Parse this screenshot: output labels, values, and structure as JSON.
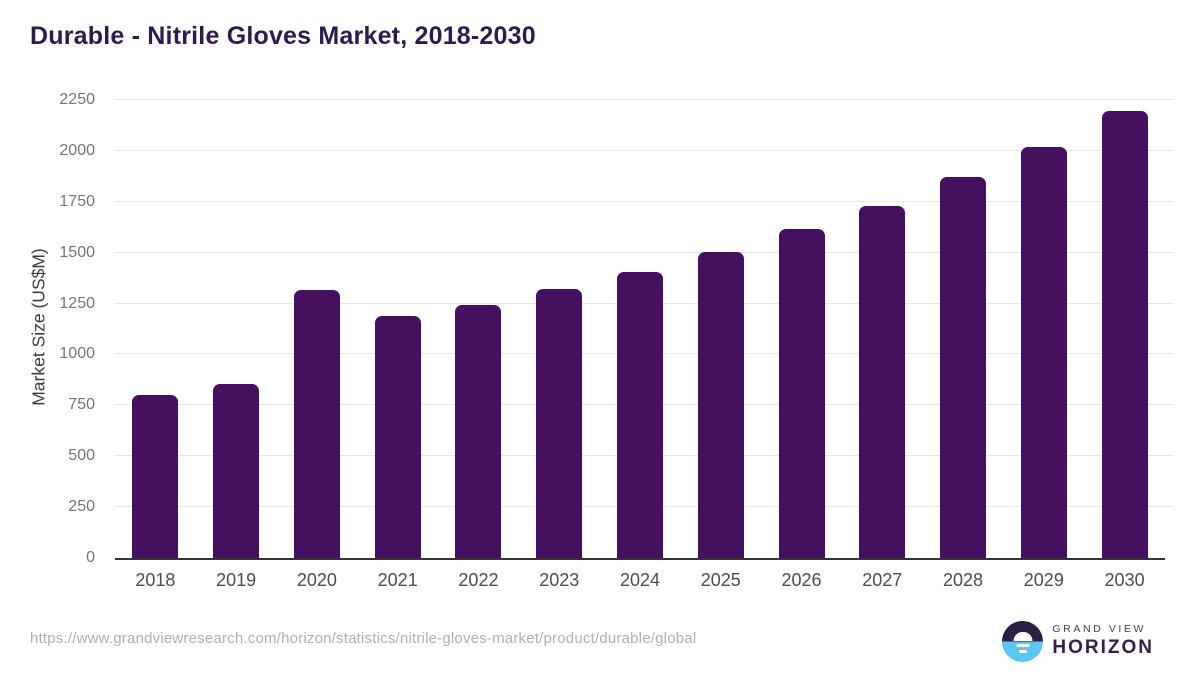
{
  "chart_data": {
    "type": "bar",
    "title": "Durable - Nitrile Gloves Market, 2018-2030",
    "ylabel": "Market Size (US$M)",
    "xlabel": "",
    "categories": [
      "2018",
      "2019",
      "2020",
      "2021",
      "2022",
      "2023",
      "2024",
      "2025",
      "2026",
      "2027",
      "2028",
      "2029",
      "2030"
    ],
    "values": [
      800,
      855,
      1315,
      1190,
      1245,
      1320,
      1405,
      1505,
      1615,
      1730,
      1870,
      2020,
      2195
    ],
    "ylim": [
      0,
      2250
    ],
    "yticks": [
      0,
      250,
      500,
      750,
      1000,
      1250,
      1500,
      1750,
      2000,
      2250
    ],
    "grid": true,
    "legend": "none",
    "bar_color": "#461060"
  },
  "footer": {
    "source_url": "https://www.grandviewresearch.com/horizon/statistics/nitrile-gloves-market/product/durable/global",
    "logo": {
      "line1": "GRAND VIEW",
      "line2": "HORIZON"
    }
  },
  "colors": {
    "title": "#2f1a4f",
    "bar": "#461060",
    "gridline": "#e7e7e7",
    "axis_line": "#333333",
    "ytick_text": "#757575",
    "xtick_text": "#4d4d4d",
    "url_text": "#b0b0b0",
    "logo_dark": "#2b2044",
    "logo_blue": "#5bc8f2"
  }
}
